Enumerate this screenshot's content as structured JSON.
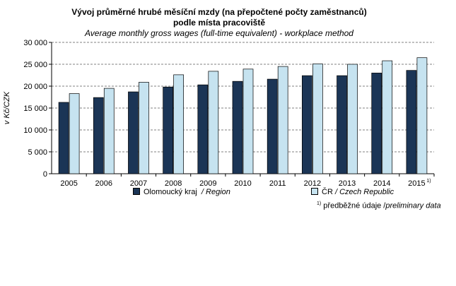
{
  "title_line1": "Vývoj průměrné hrubé měsíční mzdy (na přepočtené počty zaměstnanců)",
  "title_line2": "podle  místa pracoviště",
  "subtitle": "Average monthly gross wages (full-time equivalent) - workplace method",
  "footnote": {
    "mark": "1)",
    "text_cz": "předběžné údaje /",
    "text_en": "preliminary data"
  },
  "chart_data": {
    "type": "bar",
    "categories": [
      "2005",
      "2006",
      "2007",
      "2008",
      "2009",
      "2010",
      "2011",
      "2012",
      "2013",
      "2014",
      "2015"
    ],
    "category_superscripts": [
      "",
      "",
      "",
      "",
      "",
      "",
      "",
      "",
      "",
      "",
      "1)"
    ],
    "series": [
      {
        "name": "Olomoucký kraj",
        "name_en": "/ Region",
        "color": "#1b3556",
        "values": [
          16300,
          17400,
          18700,
          19800,
          20300,
          21100,
          21600,
          22400,
          22400,
          23000,
          23600
        ]
      },
      {
        "name": "ČR",
        "name_en": "/ Czech Republic",
        "color": "#c6e3f0",
        "values": [
          18300,
          19500,
          20900,
          22600,
          23400,
          23900,
          24500,
          25100,
          25000,
          25800,
          26500
        ]
      }
    ],
    "ylabel": "v Kč/CZK",
    "ylim": [
      0,
      30000
    ],
    "yticks": [
      0,
      5000,
      10000,
      15000,
      20000,
      25000,
      30000
    ],
    "ytick_labels": [
      "0",
      "5 000",
      "10 000",
      "15 000",
      "20 000",
      "25 000",
      "30 000"
    ],
    "grid": true,
    "legend_position": "bottom"
  }
}
